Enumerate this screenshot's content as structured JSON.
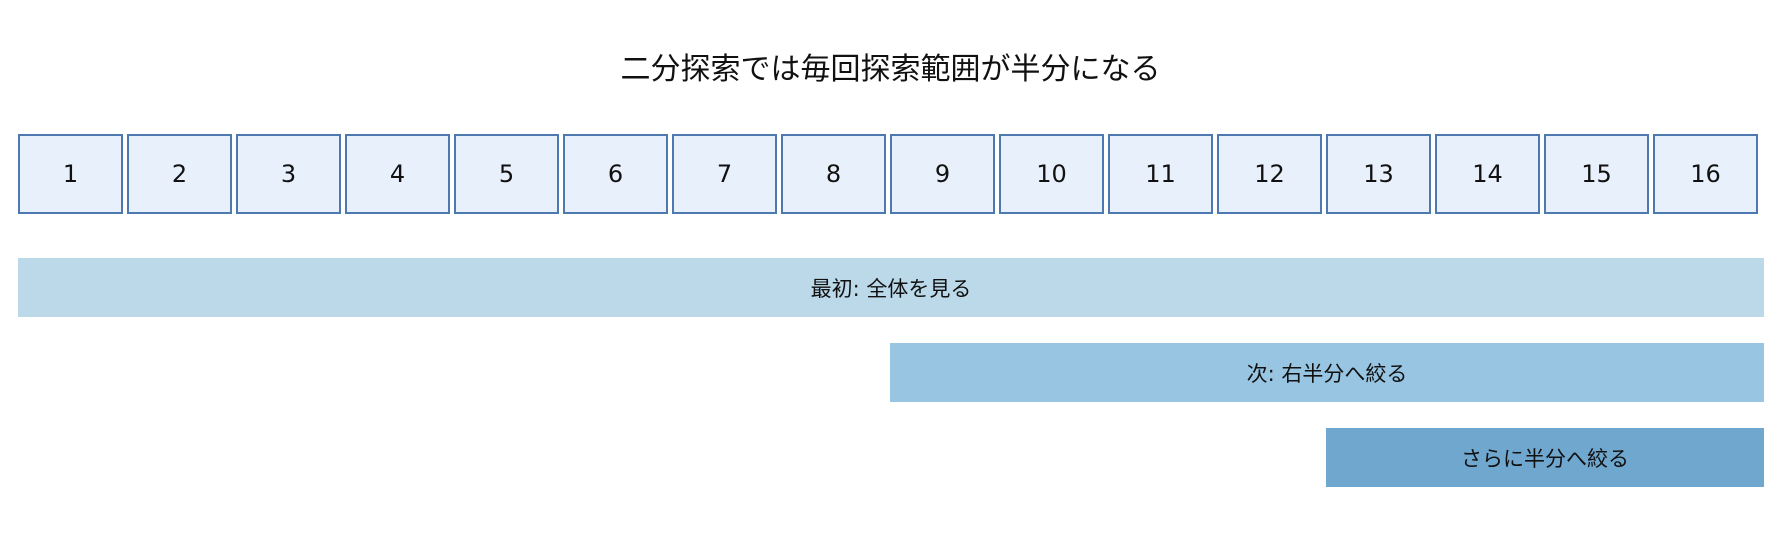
{
  "title": "二分探索では毎回探索範囲が半分になる",
  "cells": [
    "1",
    "2",
    "3",
    "4",
    "5",
    "6",
    "7",
    "8",
    "9",
    "10",
    "11",
    "12",
    "13",
    "14",
    "15",
    "16"
  ],
  "ranges": [
    {
      "label": "最初: 全体を見る",
      "start": 1,
      "end": 16,
      "color": "#bcd9ea"
    },
    {
      "label": "次: 右半分へ絞る",
      "start": 9,
      "end": 16,
      "color": "#97c5e2"
    },
    {
      "label": "さらに半分へ絞る",
      "start": 13,
      "end": 16,
      "color": "#6fa7cf"
    }
  ],
  "colors": {
    "cell_fill": "#e8f0fb",
    "cell_border": "#4e79ae"
  }
}
